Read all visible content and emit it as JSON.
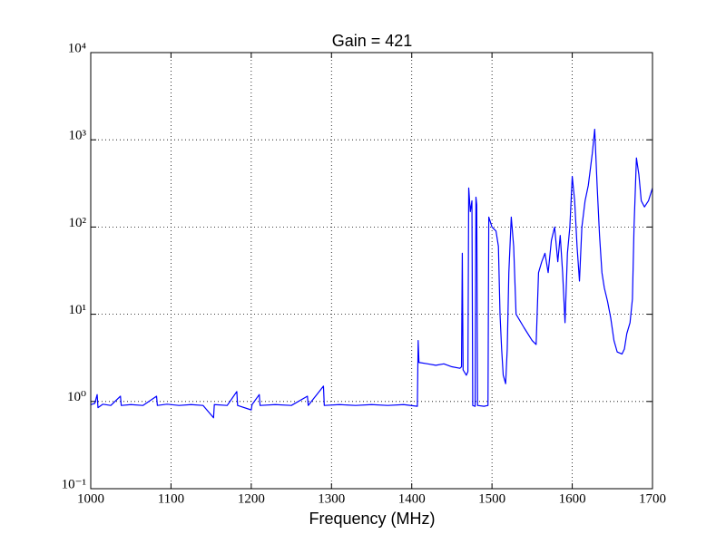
{
  "chart_data": {
    "type": "line",
    "title": "Gain = 421",
    "xlabel": "Frequency (MHz)",
    "x": [
      1000,
      1005,
      1008,
      1009,
      1015,
      1025,
      1037,
      1038,
      1050,
      1065,
      1082,
      1083,
      1095,
      1110,
      1125,
      1140,
      1153,
      1154,
      1170,
      1182,
      1183,
      1200,
      1201,
      1210,
      1211,
      1230,
      1250,
      1270,
      1271,
      1290,
      1291,
      1310,
      1330,
      1350,
      1370,
      1390,
      1407,
      1408,
      1409,
      1420,
      1430,
      1440,
      1450,
      1460,
      1462,
      1463,
      1464,
      1468,
      1470,
      1471,
      1473,
      1475,
      1476,
      1479,
      1480,
      1481,
      1482,
      1490,
      1495,
      1496,
      1500,
      1505,
      1508,
      1510,
      1512,
      1514,
      1517,
      1519,
      1521,
      1524,
      1527,
      1530,
      1540,
      1550,
      1555,
      1558,
      1562,
      1566,
      1570,
      1574,
      1578,
      1582,
      1585,
      1588,
      1591,
      1594,
      1597,
      1600,
      1603,
      1606,
      1609,
      1612,
      1616,
      1620,
      1625,
      1628,
      1631,
      1634,
      1637,
      1640,
      1644,
      1648,
      1652,
      1656,
      1662,
      1665,
      1668,
      1672,
      1675,
      1677,
      1680,
      1683,
      1686,
      1690,
      1695,
      1700
    ],
    "values": [
      0.92,
      0.95,
      1.2,
      0.85,
      0.93,
      0.9,
      1.15,
      0.9,
      0.92,
      0.9,
      1.15,
      0.9,
      0.93,
      0.9,
      0.92,
      0.9,
      0.65,
      0.92,
      0.9,
      1.3,
      0.9,
      0.8,
      0.92,
      1.2,
      0.9,
      0.92,
      0.9,
      1.15,
      0.9,
      1.5,
      0.9,
      0.92,
      0.9,
      0.92,
      0.9,
      0.92,
      0.88,
      5,
      2.8,
      2.7,
      2.6,
      2.7,
      2.5,
      2.4,
      2.5,
      50,
      2.3,
      2.0,
      2.2,
      280,
      150,
      200,
      0.9,
      0.88,
      220,
      180,
      0.9,
      0.88,
      0.9,
      130,
      100,
      90,
      60,
      10,
      4,
      2,
      1.6,
      4,
      30,
      130,
      60,
      10,
      7,
      5,
      4.5,
      30,
      40,
      50,
      30,
      70,
      100,
      40,
      80,
      30,
      8,
      50,
      100,
      380,
      200,
      60,
      24,
      100,
      200,
      300,
      700,
      1320,
      300,
      80,
      30,
      20,
      14,
      9,
      5,
      3.7,
      3.5,
      4,
      6,
      8,
      15,
      100,
      620,
      400,
      200,
      170,
      200,
      280
    ],
    "color": "#0000ff",
    "xlim": [
      1000,
      1700
    ],
    "xticks": [
      1000,
      1100,
      1200,
      1300,
      1400,
      1500,
      1600,
      1700
    ],
    "ylim": [
      0.1,
      10000
    ],
    "yscale": "log",
    "yticks": [
      {
        "value": 0.1,
        "label": "10⁻¹"
      },
      {
        "value": 1,
        "label": "10⁰"
      },
      {
        "value": 10,
        "label": "10¹"
      },
      {
        "value": 100,
        "label": "10²"
      },
      {
        "value": 1000,
        "label": "10³"
      },
      {
        "value": 10000,
        "label": "10⁴"
      }
    ],
    "grid": true
  }
}
